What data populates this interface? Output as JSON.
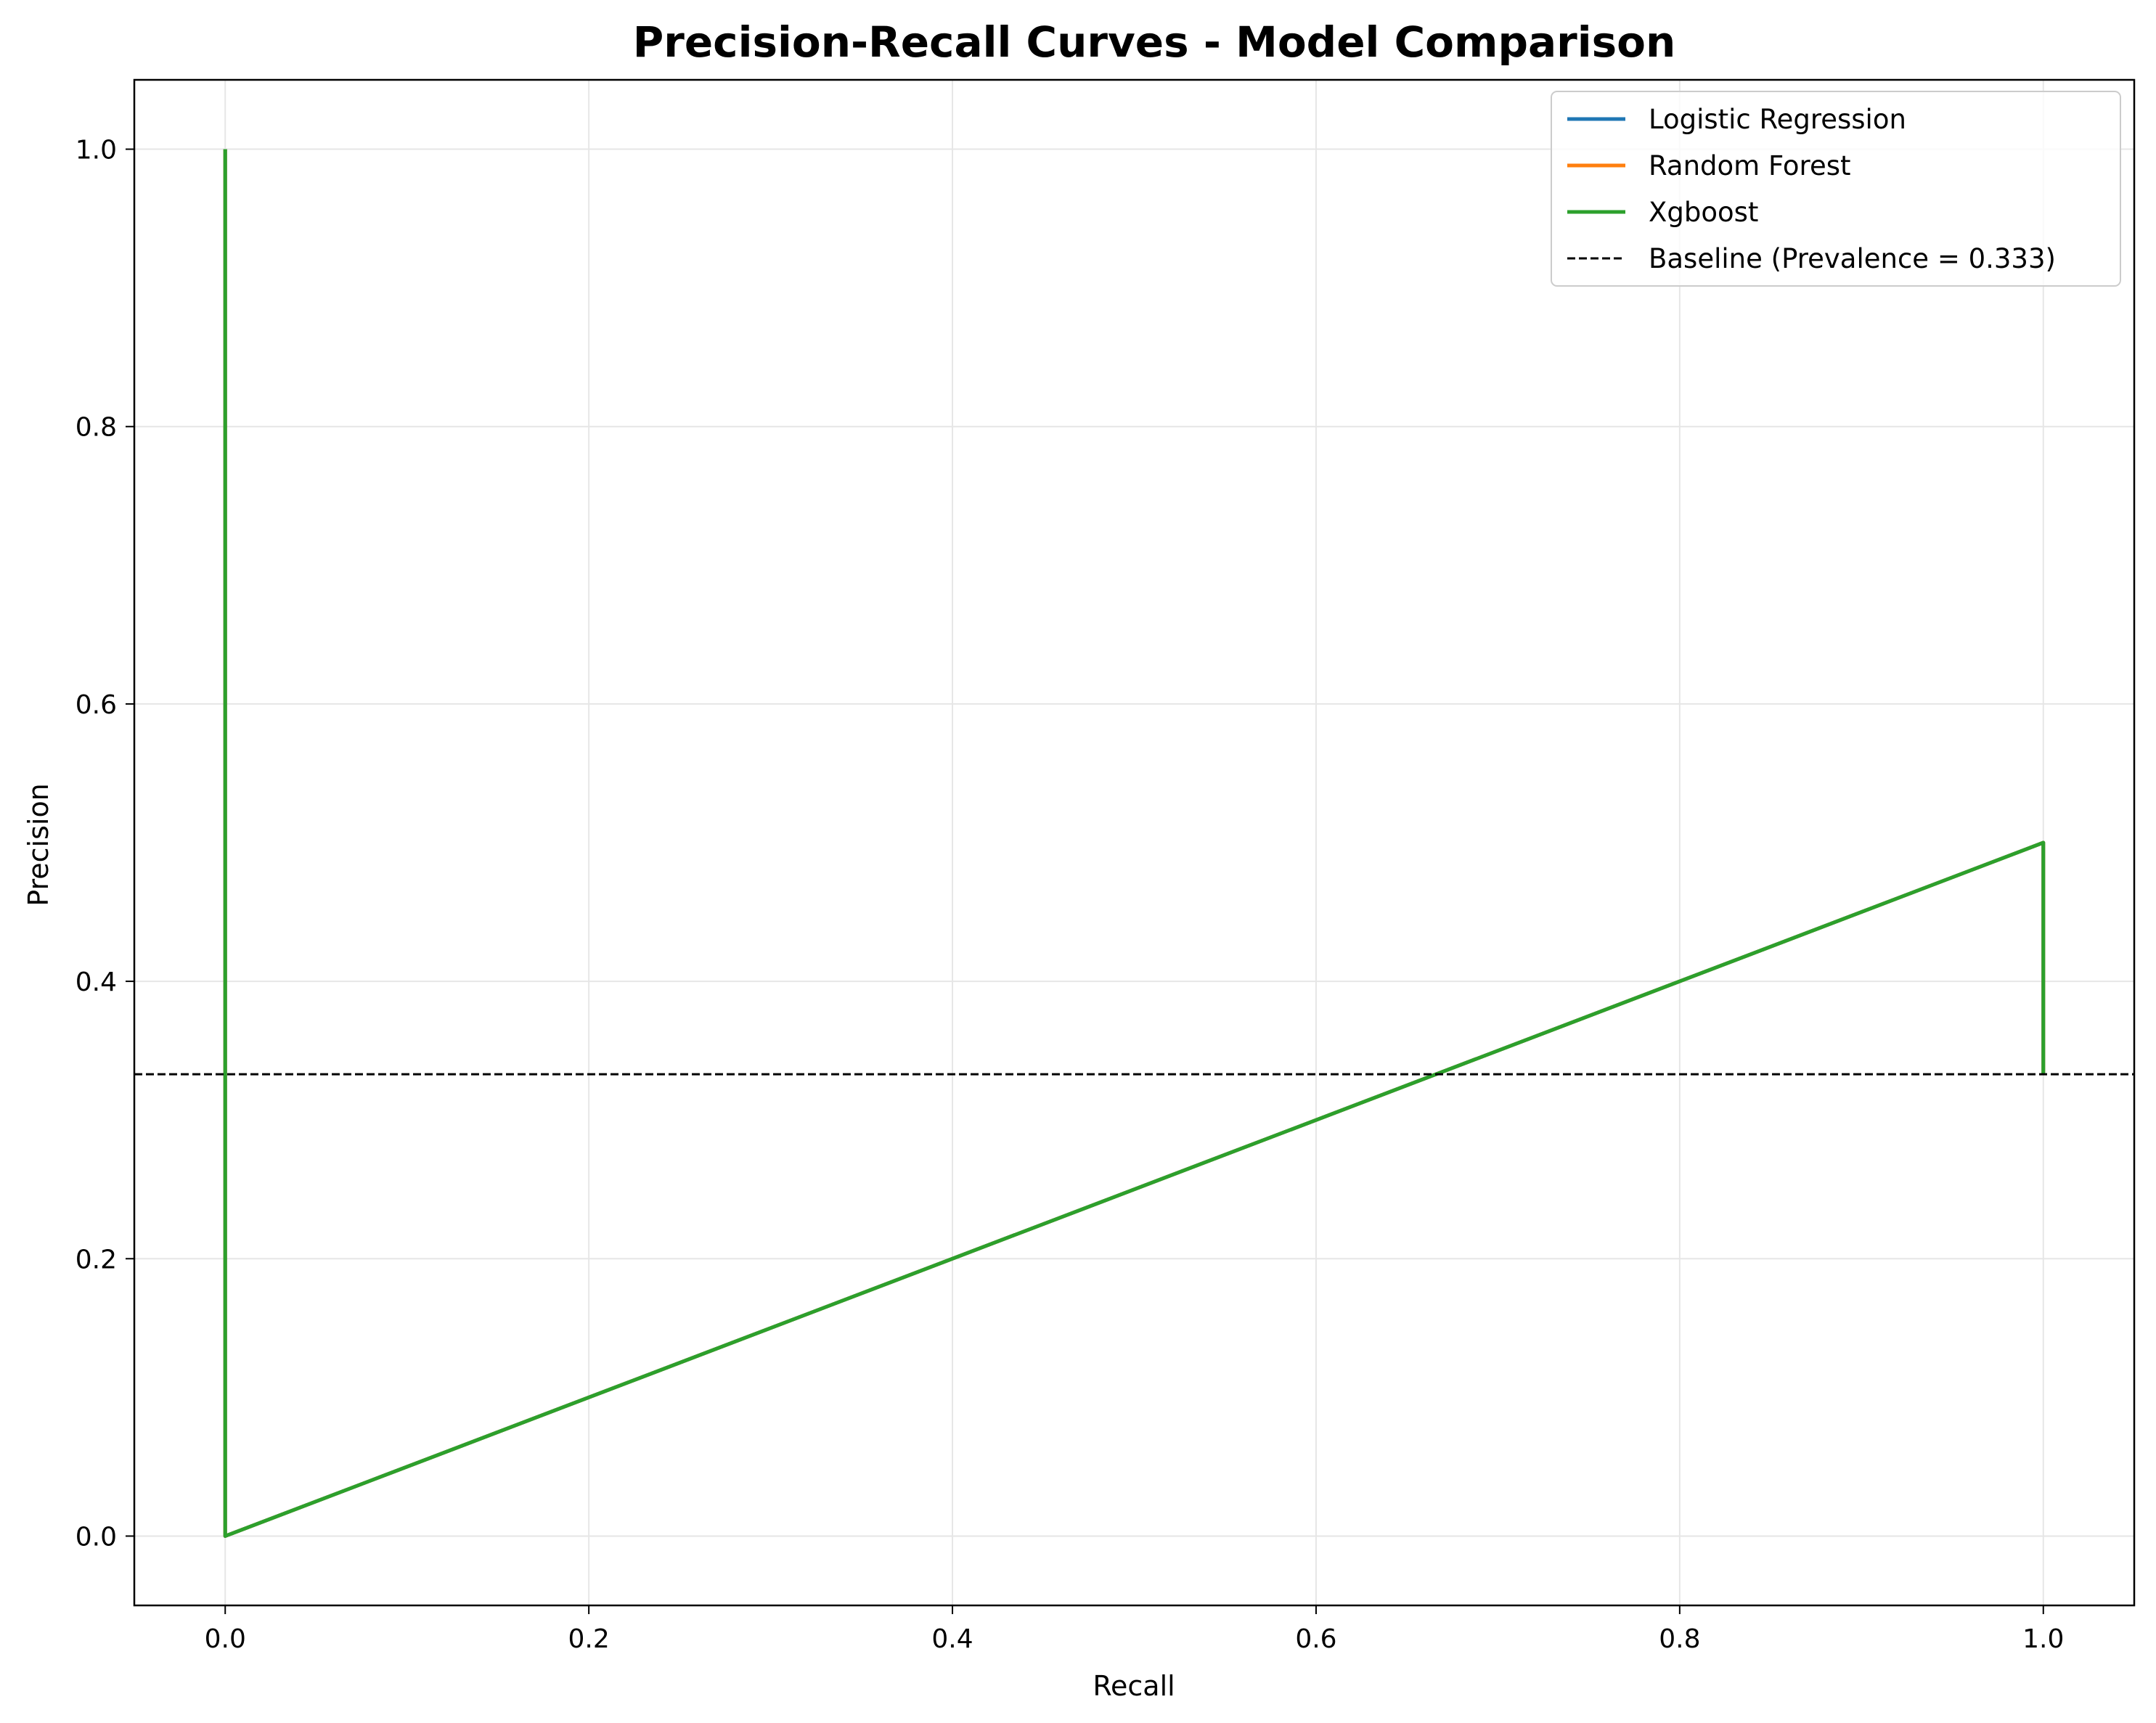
{
  "chart_data": {
    "type": "line",
    "title": "Precision-Recall Curves - Model Comparison",
    "xlabel": "Recall",
    "ylabel": "Precision",
    "xlim": [
      -0.05,
      1.05
    ],
    "ylim": [
      -0.05,
      1.05
    ],
    "xticks": [
      0.0,
      0.2,
      0.4,
      0.6,
      0.8,
      1.0
    ],
    "yticks": [
      0.0,
      0.2,
      0.4,
      0.6,
      0.8,
      1.0
    ],
    "xtick_labels": [
      "0.0",
      "0.2",
      "0.4",
      "0.6",
      "0.8",
      "1.0"
    ],
    "ytick_labels": [
      "0.0",
      "0.2",
      "0.4",
      "0.6",
      "0.8",
      "1.0"
    ],
    "grid": true,
    "legend_position": "top-right",
    "series": [
      {
        "name": "Logistic Regression",
        "color": "#1f77b4",
        "x": [
          1.0,
          1.0,
          0.0,
          0.0
        ],
        "y": [
          0.333,
          0.5,
          0.0,
          1.0
        ]
      },
      {
        "name": "Random Forest",
        "color": "#ff7f0e",
        "x": [
          1.0,
          1.0,
          0.0,
          0.0
        ],
        "y": [
          0.333,
          0.5,
          0.0,
          1.0
        ]
      },
      {
        "name": "Xgboost",
        "color": "#2ca02c",
        "x": [
          1.0,
          1.0,
          0.0,
          0.0
        ],
        "y": [
          0.333,
          0.5,
          0.0,
          1.0
        ]
      }
    ],
    "baseline": {
      "name": "Baseline (Prevalence = 0.333)",
      "value": 0.333,
      "color": "#000000",
      "style": "dashed"
    }
  }
}
